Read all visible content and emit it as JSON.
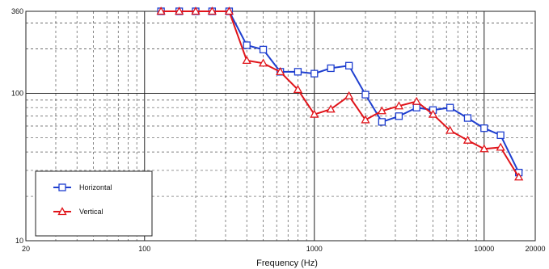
{
  "chart_data": {
    "type": "line",
    "title": "",
    "xlabel": "Frequency (Hz)",
    "ylabel": "",
    "x_scale": "log",
    "y_scale": "log",
    "xlim": [
      20,
      20000
    ],
    "ylim": [
      10,
      360
    ],
    "x_ticks": [
      {
        "value": 20,
        "label": "20"
      },
      {
        "value": 100,
        "label": "100"
      },
      {
        "value": 1000,
        "label": "1000"
      },
      {
        "value": 10000,
        "label": "10000"
      },
      {
        "value": 20000,
        "label": "20000"
      }
    ],
    "y_ticks": [
      {
        "value": 10,
        "label": "10"
      },
      {
        "value": 100,
        "label": "100"
      },
      {
        "value": 360,
        "label": "360"
      }
    ],
    "grid": true,
    "legend": "bottom-left",
    "series": [
      {
        "name": "Horizontal",
        "color": "#1f3fcf",
        "marker": "square",
        "points": [
          [
            125,
            360
          ],
          [
            160,
            360
          ],
          [
            200,
            360
          ],
          [
            250,
            360
          ],
          [
            315,
            360
          ],
          [
            400,
            212
          ],
          [
            500,
            198
          ],
          [
            630,
            140
          ],
          [
            800,
            140
          ],
          [
            1000,
            136
          ],
          [
            1250,
            148
          ],
          [
            1600,
            154
          ],
          [
            2000,
            98
          ],
          [
            2500,
            64
          ],
          [
            3150,
            70
          ],
          [
            4000,
            80
          ],
          [
            5000,
            77
          ],
          [
            6300,
            80
          ],
          [
            8000,
            68
          ],
          [
            10000,
            58
          ],
          [
            12500,
            52
          ],
          [
            16000,
            29
          ]
        ]
      },
      {
        "name": "Vertical",
        "color": "#e0141a",
        "marker": "triangle",
        "points": [
          [
            125,
            360
          ],
          [
            160,
            360
          ],
          [
            200,
            360
          ],
          [
            250,
            360
          ],
          [
            315,
            360
          ],
          [
            400,
            167
          ],
          [
            500,
            160
          ],
          [
            630,
            140
          ],
          [
            800,
            106
          ],
          [
            1000,
            72
          ],
          [
            1250,
            78
          ],
          [
            1600,
            96
          ],
          [
            2000,
            66
          ],
          [
            2500,
            76
          ],
          [
            3150,
            82
          ],
          [
            4000,
            88
          ],
          [
            5000,
            72
          ],
          [
            6300,
            56
          ],
          [
            8000,
            48
          ],
          [
            10000,
            42
          ],
          [
            12500,
            43
          ],
          [
            16000,
            27
          ]
        ]
      }
    ]
  }
}
